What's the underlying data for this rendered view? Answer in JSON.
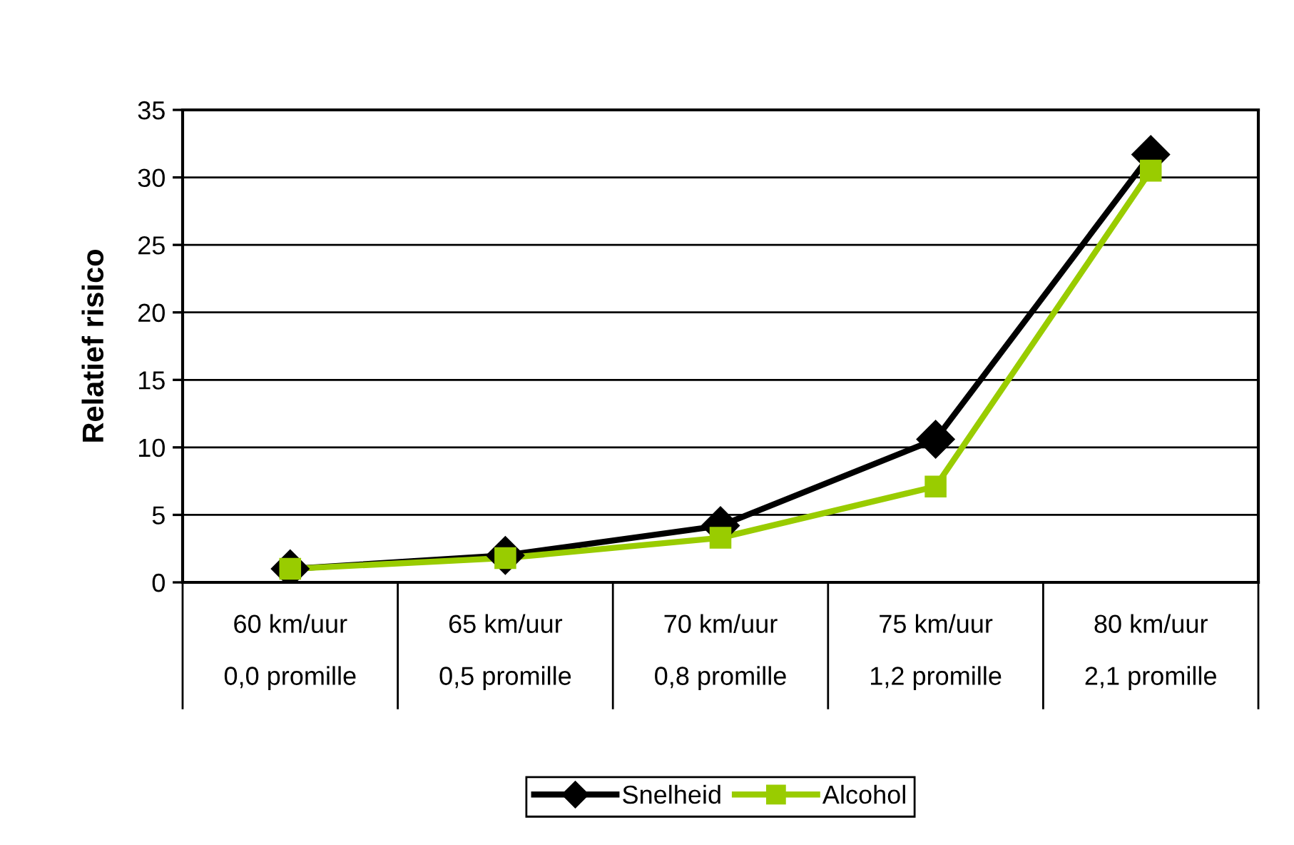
{
  "chart_data": {
    "type": "line",
    "ylabel": "Relatief risico",
    "categories": [
      "60 km/uur\n0,0 promille",
      "65 km/uur\n0,5 promille",
      "70 km/uur\n0,8 promille",
      "75 km/uur\n1,2 promille",
      "80 km/uur\n2,1 promille"
    ],
    "series": [
      {
        "name": "Snelheid",
        "color": "#000000",
        "marker": "diamond",
        "values": [
          1,
          2,
          4.2,
          10.6,
          31.7
        ]
      },
      {
        "name": "Alcohol",
        "color": "#99cc00",
        "marker": "square",
        "values": [
          1,
          1.8,
          3.3,
          7.1,
          30.5
        ]
      }
    ],
    "ylim": [
      0,
      35
    ],
    "yticks": [
      0,
      5,
      10,
      15,
      20,
      25,
      30,
      35
    ],
    "grid": "y",
    "legend": "bottom",
    "line_style": "solid"
  }
}
